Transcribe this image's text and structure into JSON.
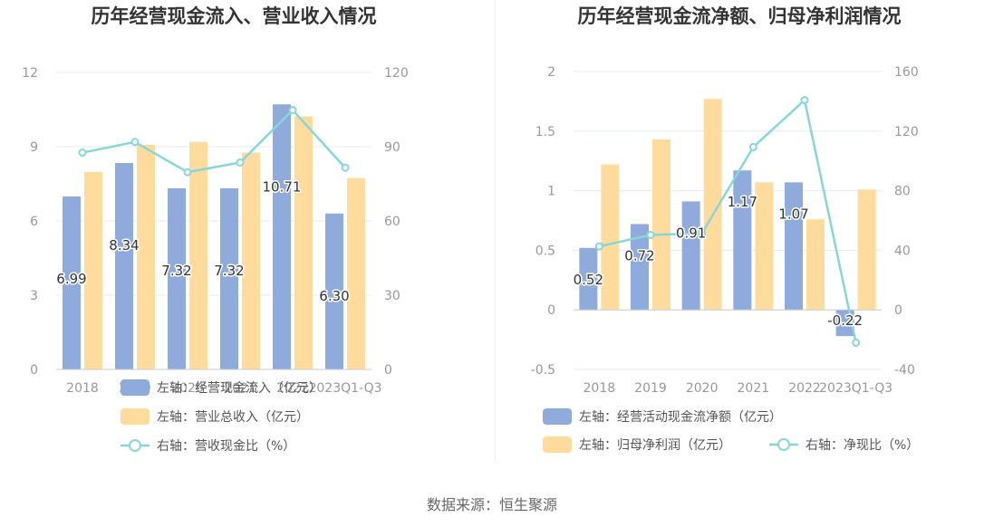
{
  "colors": {
    "inflow": "#8eabdb",
    "revenue": "#ffdb9e",
    "line": "#88d6d8",
    "grid": "#e6e8f2",
    "axis": "#c9cdd8"
  },
  "source": "数据来源：恒生聚源",
  "chart_data": [
    {
      "type": "bar",
      "title": "历年经营现金流入、营业收入情况",
      "categories": [
        "2018",
        "2019",
        "2020",
        "2021",
        "2022",
        "2023Q1-Q3"
      ],
      "left_axis": {
        "min": 0,
        "max": 12,
        "ticks": [
          0,
          3,
          6,
          9,
          12
        ]
      },
      "right_axis": {
        "min": 0,
        "max": 120,
        "ticks": [
          0,
          30,
          60,
          90,
          120
        ]
      },
      "series": [
        {
          "name": "左轴：经营现金流入（亿元）",
          "kind": "bar",
          "axis": "left",
          "values": [
            6.99,
            8.34,
            7.32,
            7.32,
            10.71,
            6.3
          ],
          "labels": [
            "6.99",
            "8.34",
            "7.32",
            "7.32",
            "10.71",
            "6.30"
          ]
        },
        {
          "name": "左轴：营业总收入（亿元）",
          "kind": "bar",
          "axis": "left",
          "values": [
            7.98,
            9.08,
            9.19,
            8.76,
            10.22,
            7.73
          ]
        },
        {
          "name": "右轴：营收现金比（%）",
          "kind": "line",
          "axis": "right",
          "values": [
            87.6,
            91.9,
            79.7,
            83.6,
            104.8,
            81.5
          ]
        }
      ],
      "legend_position": "bottom",
      "grid": true
    },
    {
      "type": "bar",
      "title": "历年经营现金流净额、归母净利润情况",
      "categories": [
        "2018",
        "2019",
        "2020",
        "2021",
        "2022",
        "2023Q1-Q3"
      ],
      "left_axis": {
        "min": -0.5,
        "max": 2,
        "ticks": [
          -0.5,
          0,
          0.5,
          1,
          1.5,
          2
        ]
      },
      "right_axis": {
        "min": -40,
        "max": 160,
        "ticks": [
          -40,
          0,
          40,
          80,
          120,
          160
        ]
      },
      "series": [
        {
          "name": "左轴：经营活动现金流净额（亿元）",
          "kind": "bar",
          "axis": "left",
          "values": [
            0.52,
            0.72,
            0.91,
            1.17,
            1.07,
            -0.22
          ],
          "labels": [
            "0.52",
            "0.72",
            "0.91",
            "1.17",
            "1.07",
            "-0.22"
          ]
        },
        {
          "name": "左轴：归母净利润（亿元）",
          "kind": "bar",
          "axis": "left",
          "values": [
            1.22,
            1.43,
            1.77,
            1.07,
            0.76,
            1.01
          ]
        },
        {
          "name": "右轴：净现比（%）",
          "kind": "line",
          "axis": "right",
          "values": [
            42.6,
            50.3,
            51.4,
            109.3,
            140.8,
            -22.0
          ]
        }
      ],
      "legend_position": "bottom",
      "grid": true
    }
  ]
}
